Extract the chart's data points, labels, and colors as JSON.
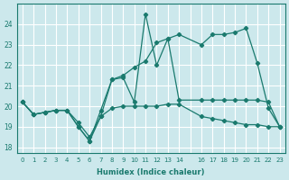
{
  "xlabel": "Humidex (Indice chaleur)",
  "bg_color": "#cce8ec",
  "grid_color": "#ffffff",
  "line_color": "#1a7a6e",
  "xlim": [
    -0.5,
    23.5
  ],
  "ylim": [
    17.7,
    25.0
  ],
  "yticks": [
    18,
    19,
    20,
    21,
    22,
    23,
    24
  ],
  "xtick_labels": [
    "0",
    "1",
    "2",
    "3",
    "4",
    "5",
    "6",
    "7",
    "8",
    "9",
    "10",
    "11",
    "12",
    "13",
    "14",
    "",
    "16",
    "17",
    "18",
    "19",
    "20",
    "21",
    "22",
    "23"
  ],
  "series_zigzag_x": [
    0,
    1,
    2,
    3,
    4,
    5,
    6,
    7,
    8,
    9,
    10,
    11,
    12,
    13,
    14,
    16,
    17,
    18,
    19,
    20,
    21,
    22,
    23
  ],
  "series_zigzag_y": [
    20.2,
    19.6,
    19.7,
    19.8,
    19.8,
    19.0,
    18.3,
    19.5,
    21.3,
    21.4,
    20.2,
    24.5,
    22.0,
    23.3,
    20.3,
    20.3,
    20.3,
    20.3,
    20.3,
    20.3,
    20.3,
    20.2,
    19.0
  ],
  "series_rising_x": [
    0,
    1,
    2,
    3,
    4,
    5,
    6,
    7,
    8,
    9,
    10,
    11,
    12,
    13,
    14,
    16,
    17,
    18,
    19,
    20,
    21,
    22,
    23
  ],
  "series_rising_y": [
    20.2,
    19.6,
    19.7,
    19.8,
    19.8,
    19.0,
    18.3,
    19.8,
    21.3,
    21.5,
    21.9,
    22.2,
    23.1,
    23.3,
    23.5,
    23.0,
    23.5,
    23.5,
    23.6,
    23.8,
    22.1,
    19.9,
    19.0
  ],
  "series_flat_x": [
    0,
    1,
    2,
    3,
    4,
    5,
    6,
    7,
    8,
    9,
    10,
    11,
    12,
    13,
    14,
    16,
    17,
    18,
    19,
    20,
    21,
    22,
    23
  ],
  "series_flat_y": [
    20.2,
    19.6,
    19.7,
    19.8,
    19.8,
    19.2,
    18.5,
    19.5,
    19.9,
    20.0,
    20.0,
    20.0,
    20.0,
    20.1,
    20.1,
    19.5,
    19.4,
    19.3,
    19.2,
    19.1,
    19.1,
    19.0,
    19.0
  ]
}
